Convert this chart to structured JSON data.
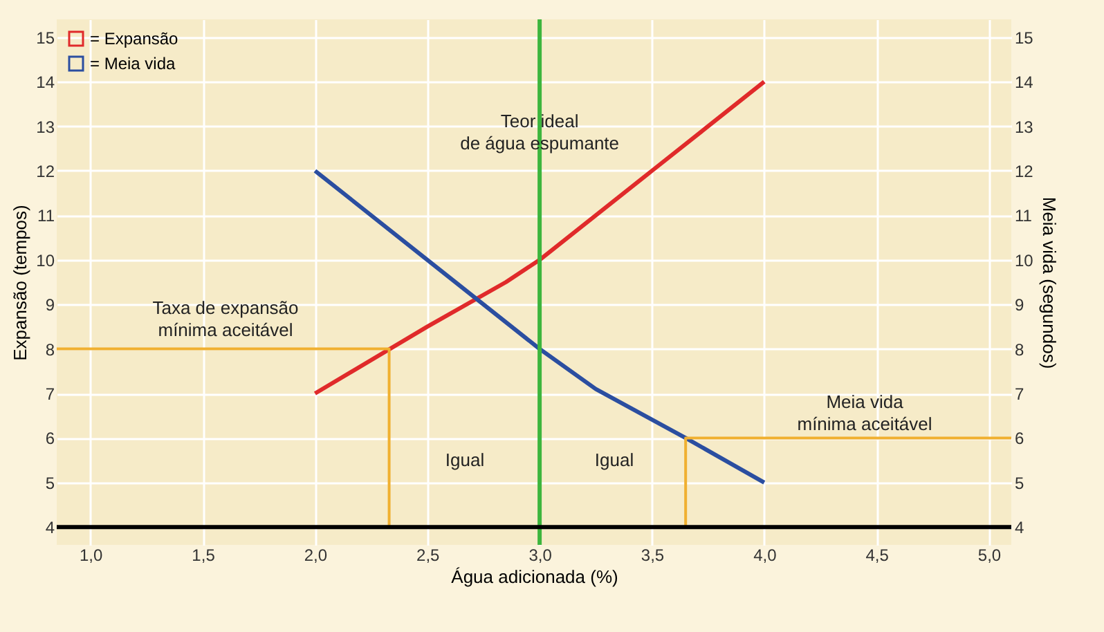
{
  "chart_data": {
    "type": "line",
    "xlabel": "Água adicionada (%)",
    "ylabel": "Expansão (tempos)",
    "y2label": "Meia vida (segundos)",
    "xlim": [
      0.85,
      5.1
    ],
    "xticks": [
      {
        "value": 1,
        "label": "1,0"
      },
      {
        "value": 1.5,
        "label": "1,5"
      },
      {
        "value": 2,
        "label": "2,0"
      },
      {
        "value": 2.5,
        "label": "2,5"
      },
      {
        "value": 3,
        "label": "3,0"
      },
      {
        "value": 3.5,
        "label": "3,5"
      },
      {
        "value": 4,
        "label": "4,0"
      },
      {
        "value": 4.5,
        "label": "4,5"
      },
      {
        "value": 5,
        "label": "5,0"
      }
    ],
    "ylim": [
      3.6,
      15.4
    ],
    "yticks": [
      4,
      5,
      6,
      7,
      8,
      9,
      10,
      11,
      12,
      13,
      14,
      15
    ],
    "y2lim": [
      3.6,
      15.4
    ],
    "y2ticks": [
      4,
      5,
      6,
      7,
      8,
      9,
      10,
      11,
      12,
      13,
      14,
      15
    ],
    "series": [
      {
        "name": "= Expansão",
        "color": "#e02a2a",
        "x": [
          2.0,
          2.5,
          2.85,
          3.0,
          3.5,
          4.0
        ],
        "values": [
          7.0,
          8.5,
          9.5,
          10.0,
          12.0,
          14.0
        ]
      },
      {
        "name": "= Meia vida",
        "color": "#2b4ea0",
        "axis": "y2",
        "x": [
          2.0,
          2.5,
          3.0,
          3.25,
          3.65,
          4.0
        ],
        "values": [
          12.0,
          10.0,
          8.0,
          7.1,
          6.0,
          5.0
        ]
      },
      {
        "color": "#f0b030",
        "x": [
          0.85,
          2.33,
          2.33
        ],
        "values": [
          8,
          8,
          4
        ]
      },
      {
        "color": "#f0b030",
        "x": [
          3.65,
          3.65,
          5.1
        ],
        "values": [
          4,
          6,
          6
        ]
      }
    ],
    "ref_lines": [
      {
        "axis": "x",
        "value": 3,
        "color": "#3db53d"
      },
      {
        "axis": "y",
        "value": 4,
        "color": "#000000"
      }
    ],
    "annotations": [
      {
        "text": "Teor ideal\nde água espumante",
        "x": 3.0,
        "y": 13.1
      },
      "Taxa de expansão\nmínima aceitável",
      "Meia vida\nmínima aceitável",
      "Igual",
      "Igual"
    ],
    "grid": true,
    "legend": "top left",
    "marker": "none",
    "line_style": "solid"
  }
}
